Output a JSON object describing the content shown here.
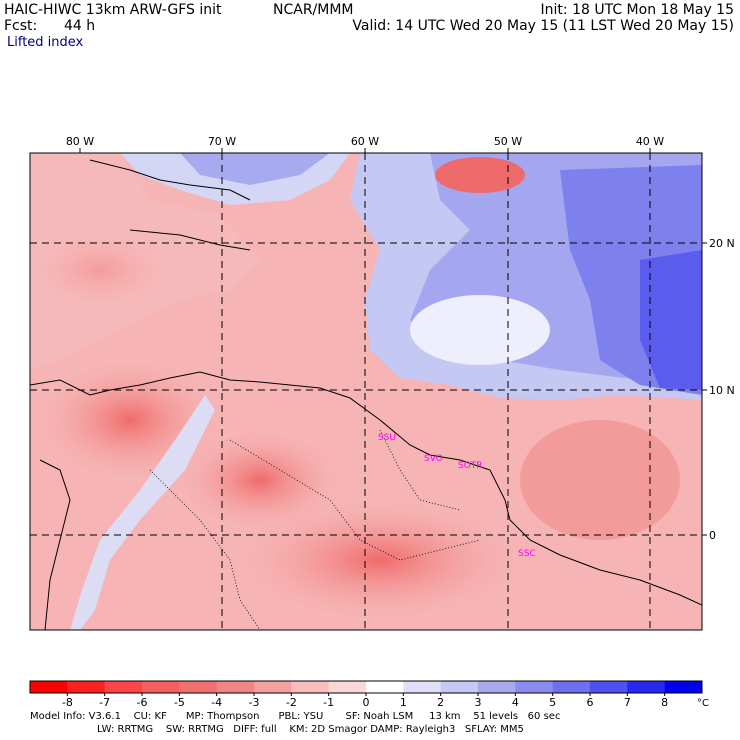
{
  "header": {
    "model_title": "HAIC-HIWC 13km ARW-GFS init",
    "org": "NCAR/MMM",
    "fcst_label": "Fcst:",
    "fcst_value": "44 h",
    "field_name": "Lifted index",
    "init": "Init: 18 UTC Mon 18 May 15",
    "valid": "Valid: 14 UTC Wed 20 May 15 (11 LST Wed 20 May 15)"
  },
  "map": {
    "lon_labels": [
      "80 W",
      "70 W",
      "60 W",
      "50 W",
      "40 W"
    ],
    "lat_labels": [
      "20 N",
      "10 N",
      "0"
    ],
    "stations": [
      "SSU",
      "SVO",
      "SOTR",
      "SSC"
    ]
  },
  "colorbar": {
    "ticks": [
      "-8",
      "-7",
      "-6",
      "-5",
      "-4",
      "-3",
      "-2",
      "-1",
      "0",
      "1",
      "2",
      "3",
      "4",
      "5",
      "6",
      "7",
      "8"
    ],
    "unit": "°C",
    "colors": [
      "#ff0000",
      "#ff2020",
      "#ff4545",
      "#f55f5f",
      "#f07070",
      "#f08585",
      "#f5a0a0",
      "#f8bcbc",
      "#fbd8d8",
      "#ffffff",
      "#dfe0f8",
      "#c8c8f5",
      "#a8aaf0",
      "#8c8cf0",
      "#7070ee",
      "#5050ee",
      "#2828f0",
      "#0000f0"
    ]
  },
  "footer": {
    "line1": "Model Info: V3.6.1    CU: KF      MP: Thompson      PBL: YSU       SF: Noah LSM     13 km    51 levels   60 sec",
    "line2": "LW: RRTMG    SW: RRTMG   DIFF: full    KM: 2D Smagor DAMP: Rayleigh3   SFLAY: MM5"
  }
}
